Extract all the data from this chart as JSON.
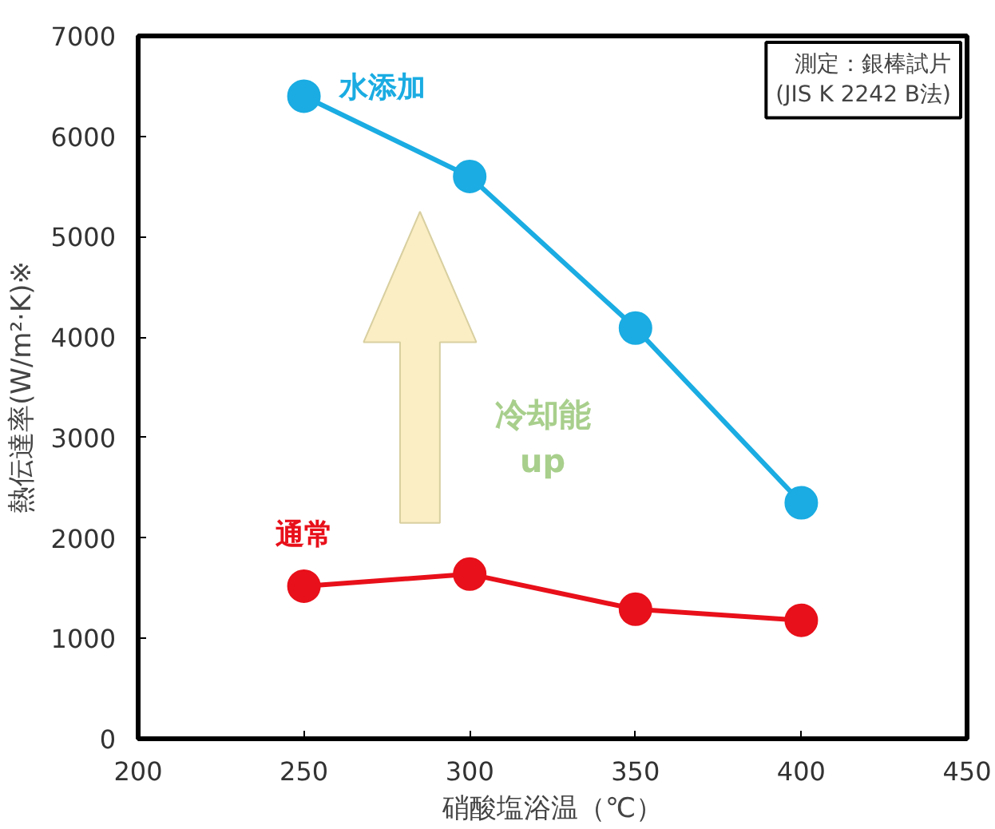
{
  "chart_data": {
    "type": "line",
    "xlabel": "硝酸塩浴温（℃）",
    "ylabel": "熱伝達率(W/m²·K)※",
    "x": [
      250,
      300,
      350,
      400
    ],
    "series": [
      {
        "name": "水添加",
        "color": "#1aace2",
        "values": [
          6400,
          5600,
          4090,
          2350
        ]
      },
      {
        "name": "通常",
        "color": "#e8101a",
        "values": [
          1520,
          1640,
          1290,
          1180
        ]
      }
    ],
    "xlim": [
      200,
      450
    ],
    "xticks": [
      200,
      250,
      300,
      350,
      400,
      450
    ],
    "ylim": [
      0,
      7000
    ],
    "yticks": [
      0,
      1000,
      2000,
      3000,
      4000,
      5000,
      6000,
      7000
    ],
    "grid": false,
    "legend": false,
    "marker": "circle",
    "line_style": "solid",
    "annotations": [
      "測定：銀棒試片\n(JIS K 2242 B法)",
      "冷却能\nup"
    ]
  }
}
